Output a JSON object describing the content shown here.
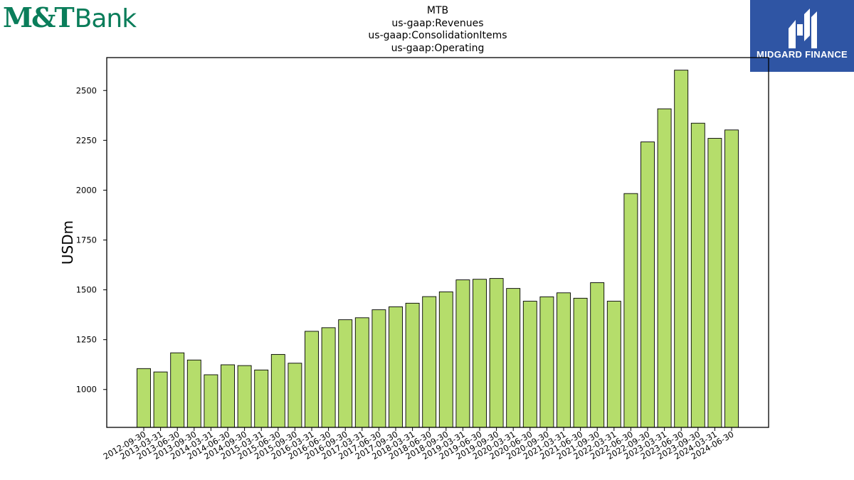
{
  "brand": {
    "logo_text": "M&T Bank",
    "logo_part1": "M&T",
    "logo_part2": "Bank",
    "color": "#0a7d5a"
  },
  "watermark": {
    "name": "MIDGARD FINANCE",
    "background": "#2f55a4"
  },
  "header": {
    "lines": [
      "MTB",
      "us-gaap:Revenues",
      "us-gaap:ConsolidationItems",
      "us-gaap:Operating"
    ]
  },
  "chart_data": {
    "type": "bar",
    "title": "MTB\nus-gaap:Revenues\nus-gaap:ConsolidationItems\nus-gaap:Operating",
    "xlabel": "",
    "ylabel": "USDm",
    "ylim": [
      810,
      2665
    ],
    "yticks": [
      1000,
      1250,
      1500,
      1750,
      2000,
      2250,
      2500
    ],
    "bar_color": "#b5dd6b",
    "categories": [
      "2012-09-30",
      "2013-03-31",
      "2013-06-30",
      "2013-09-30",
      "2014-03-31",
      "2014-06-30",
      "2014-09-30",
      "2015-03-31",
      "2015-06-30",
      "2015-09-30",
      "2016-03-31",
      "2016-06-30",
      "2016-09-30",
      "2017-03-31",
      "2017-06-30",
      "2017-09-30",
      "2018-03-31",
      "2018-06-30",
      "2018-09-30",
      "2019-03-31",
      "2019-06-30",
      "2019-09-30",
      "2020-03-31",
      "2020-06-30",
      "2020-09-30",
      "2021-03-31",
      "2021-06-30",
      "2021-09-30",
      "2022-03-31",
      "2022-06-30",
      "2022-09-30",
      "2023-03-31",
      "2023-06-30",
      "2023-09-30",
      "2024-03-31",
      "2024-06-30"
    ],
    "values": [
      1105,
      1088,
      1184,
      1148,
      1074,
      1124,
      1120,
      1098,
      1176,
      1132,
      1292,
      1310,
      1350,
      1360,
      1400,
      1415,
      1433,
      1466,
      1490,
      1550,
      1553,
      1557,
      1507,
      1443,
      1465,
      1485,
      1458,
      1536,
      1443,
      1983,
      2242,
      2408,
      2602,
      2336,
      2260,
      2302
    ],
    "grid": false,
    "legend": "none"
  }
}
